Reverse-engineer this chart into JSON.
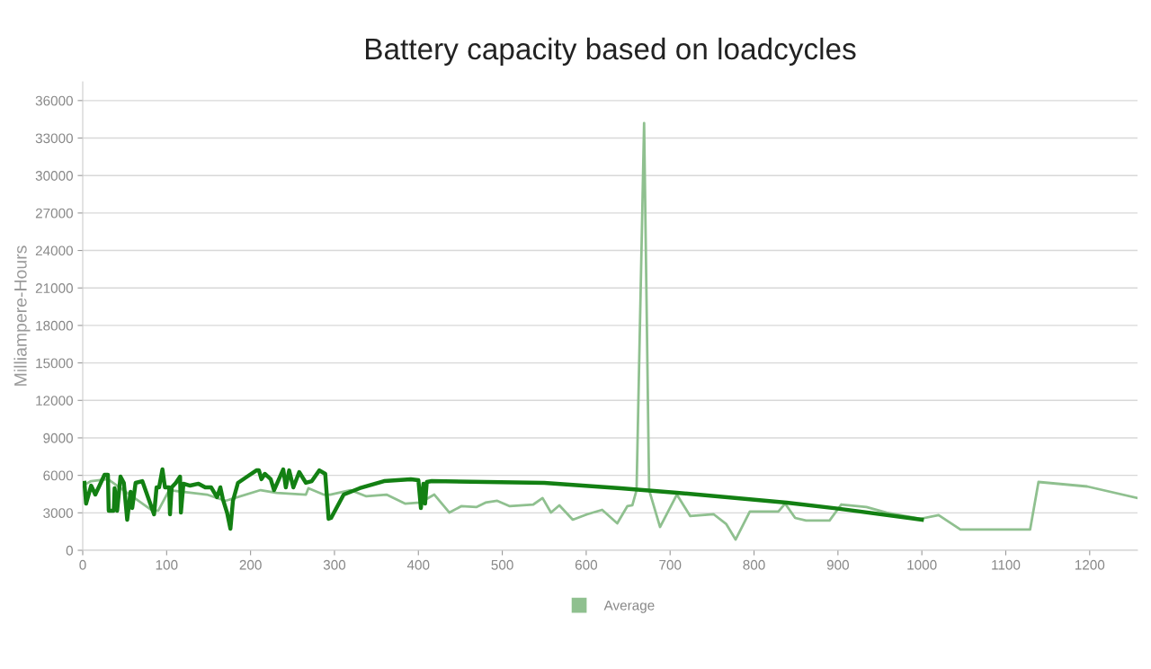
{
  "chart_data": {
    "type": "line",
    "title": "Battery capacity based on loadcycles",
    "ylabel": "Milliampere-Hours",
    "xlim": [
      0,
      1257
    ],
    "xticks": [
      0,
      100,
      200,
      300,
      400,
      500,
      600,
      700,
      800,
      900,
      1000,
      1100,
      1200
    ],
    "ylim": [
      0,
      37500
    ],
    "yticks": [
      0,
      3000,
      6000,
      9000,
      12000,
      15000,
      18000,
      21000,
      24000,
      27000,
      30000,
      33000,
      36000
    ],
    "grid": "y",
    "legend": "bottom",
    "marker": "none",
    "line_style": "solid",
    "series": [
      {
        "name": "Average",
        "color": "#8fc08f",
        "x": [
          0,
          10,
          30,
          83,
          90,
          103,
          148,
          170,
          212,
          231,
          266,
          269,
          287,
          295,
          319,
          338,
          362,
          384,
          402,
          419,
          437,
          451,
          469,
          480,
          494,
          509,
          537,
          548,
          558,
          568,
          584,
          601,
          619,
          637,
          649,
          655,
          660,
          669,
          675,
          688,
          708,
          724,
          752,
          767,
          778,
          795,
          811,
          829,
          837,
          849,
          862,
          890,
          904,
          934,
          958,
          998,
          1020,
          1046,
          1129,
          1139,
          1197,
          1257
        ],
        "values": [
          5180,
          5540,
          5700,
          3170,
          3170,
          4820,
          4460,
          3960,
          4820,
          4600,
          4460,
          4970,
          4460,
          4460,
          4820,
          4320,
          4460,
          3740,
          3820,
          4460,
          3020,
          3530,
          3460,
          3820,
          3960,
          3530,
          3670,
          4180,
          3020,
          3600,
          2450,
          2880,
          3240,
          2160,
          3530,
          3600,
          4820,
          34200,
          4820,
          1870,
          4460,
          2740,
          2880,
          2090,
          860,
          3100,
          3100,
          3100,
          3740,
          2590,
          2380,
          2380,
          3670,
          3460,
          3020,
          2520,
          2810,
          1660,
          1660,
          5470,
          5110,
          4180
        ]
      },
      {
        "color": "#138013",
        "x": [
          2,
          4,
          10,
          15,
          20,
          26,
          30,
          31,
          37,
          38,
          41,
          45,
          49,
          53,
          57,
          59,
          63,
          71,
          85,
          88,
          91,
          95,
          98,
          103,
          104,
          106,
          111,
          116,
          117,
          120,
          128,
          138,
          146,
          153,
          160,
          164,
          167,
          172,
          176,
          179,
          185,
          196,
          207,
          210,
          213,
          217,
          224,
          228,
          239,
          242,
          246,
          251,
          258,
          266,
          273,
          282,
          289,
          293,
          296,
          311,
          330,
          359,
          391,
          400,
          403,
          406,
          408,
          410,
          416,
          550,
          641,
          708,
          839,
          900,
          1000
        ],
        "values": [
          5400,
          3740,
          5180,
          4460,
          5180,
          6050,
          6050,
          3170,
          3170,
          4970,
          3170,
          5900,
          5400,
          2450,
          4680,
          3380,
          5400,
          5540,
          2880,
          5040,
          5040,
          6480,
          5040,
          5040,
          2880,
          5040,
          5400,
          5900,
          3020,
          5330,
          5180,
          5330,
          5040,
          5040,
          4250,
          5040,
          4100,
          3020,
          1730,
          3960,
          5400,
          5900,
          6400,
          6400,
          5690,
          6120,
          5690,
          4820,
          6480,
          5040,
          6400,
          5040,
          6260,
          5400,
          5540,
          6400,
          6120,
          2520,
          2590,
          4460,
          4970,
          5540,
          5690,
          5620,
          3380,
          5330,
          3740,
          5470,
          5540,
          5400,
          4970,
          4610,
          3820,
          3340,
          2450
        ]
      }
    ]
  }
}
